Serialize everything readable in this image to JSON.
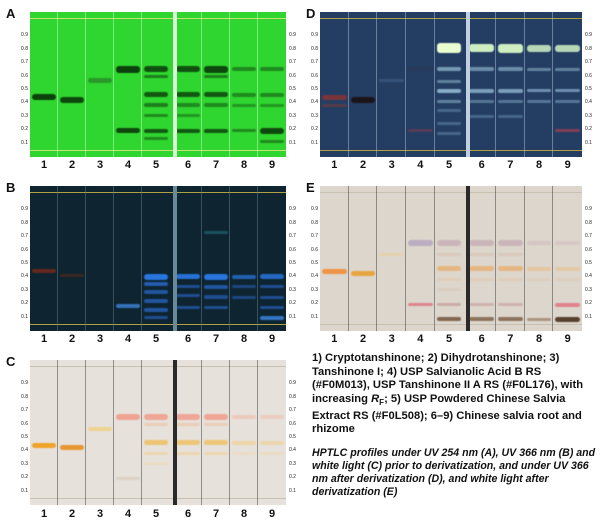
{
  "panels": [
    {
      "letter": "A",
      "plate_color": "#2fd62f",
      "divider_color": "#d8ffd8",
      "frame_color": "#c8e070",
      "mode": "green"
    },
    {
      "letter": "B",
      "plate_color": "#0e2430",
      "divider_color": "#6a8a9a",
      "frame_color": "#b0a040",
      "mode": "dark"
    },
    {
      "letter": "C",
      "plate_color": "#e6e1da",
      "divider_color": "#2a2a2a",
      "frame_color": "#c8c0b0",
      "mode": "white"
    },
    {
      "letter": "D",
      "plate_color": "#243d63",
      "divider_color": "#c0d0e0",
      "frame_color": "#b0a040",
      "mode": "deriv_uv"
    },
    {
      "letter": "E",
      "plate_color": "#ddd6cc",
      "divider_color": "#2a2a2a",
      "frame_color": "#c8c0b0",
      "mode": "deriv_white"
    }
  ],
  "lane_labels": [
    "1",
    "2",
    "3",
    "4",
    "5",
    "6",
    "7",
    "8",
    "9"
  ],
  "rf_ticks": [
    "0.9",
    "0.8",
    "0.7",
    "0.6",
    "0.5",
    "0.4",
    "0.3",
    "0.2",
    "0.1"
  ],
  "legend": {
    "part1": "1) Cryptotanshinone; 2) Dihydrotanshinone; 3) Tanshinone I; 4) USP Salvianolic Acid B RS (#F0M013), USP Tanshinone II A RS (#F0L176), with increasing ",
    "rf_symbol": "R",
    "rf_sub": "F",
    "part2": "; 5) USP Powdered Chinese Salvia Extract RS (#F0L508); 6–9) Chinese salvia root and rhizome"
  },
  "figure_caption": "HPTLC profiles under UV 254 nm (A), UV 366 nm (B) and white light (C) prior to derivatization, and under UV 366 nm after derivatization (D), and white light after derivatization (E)"
}
